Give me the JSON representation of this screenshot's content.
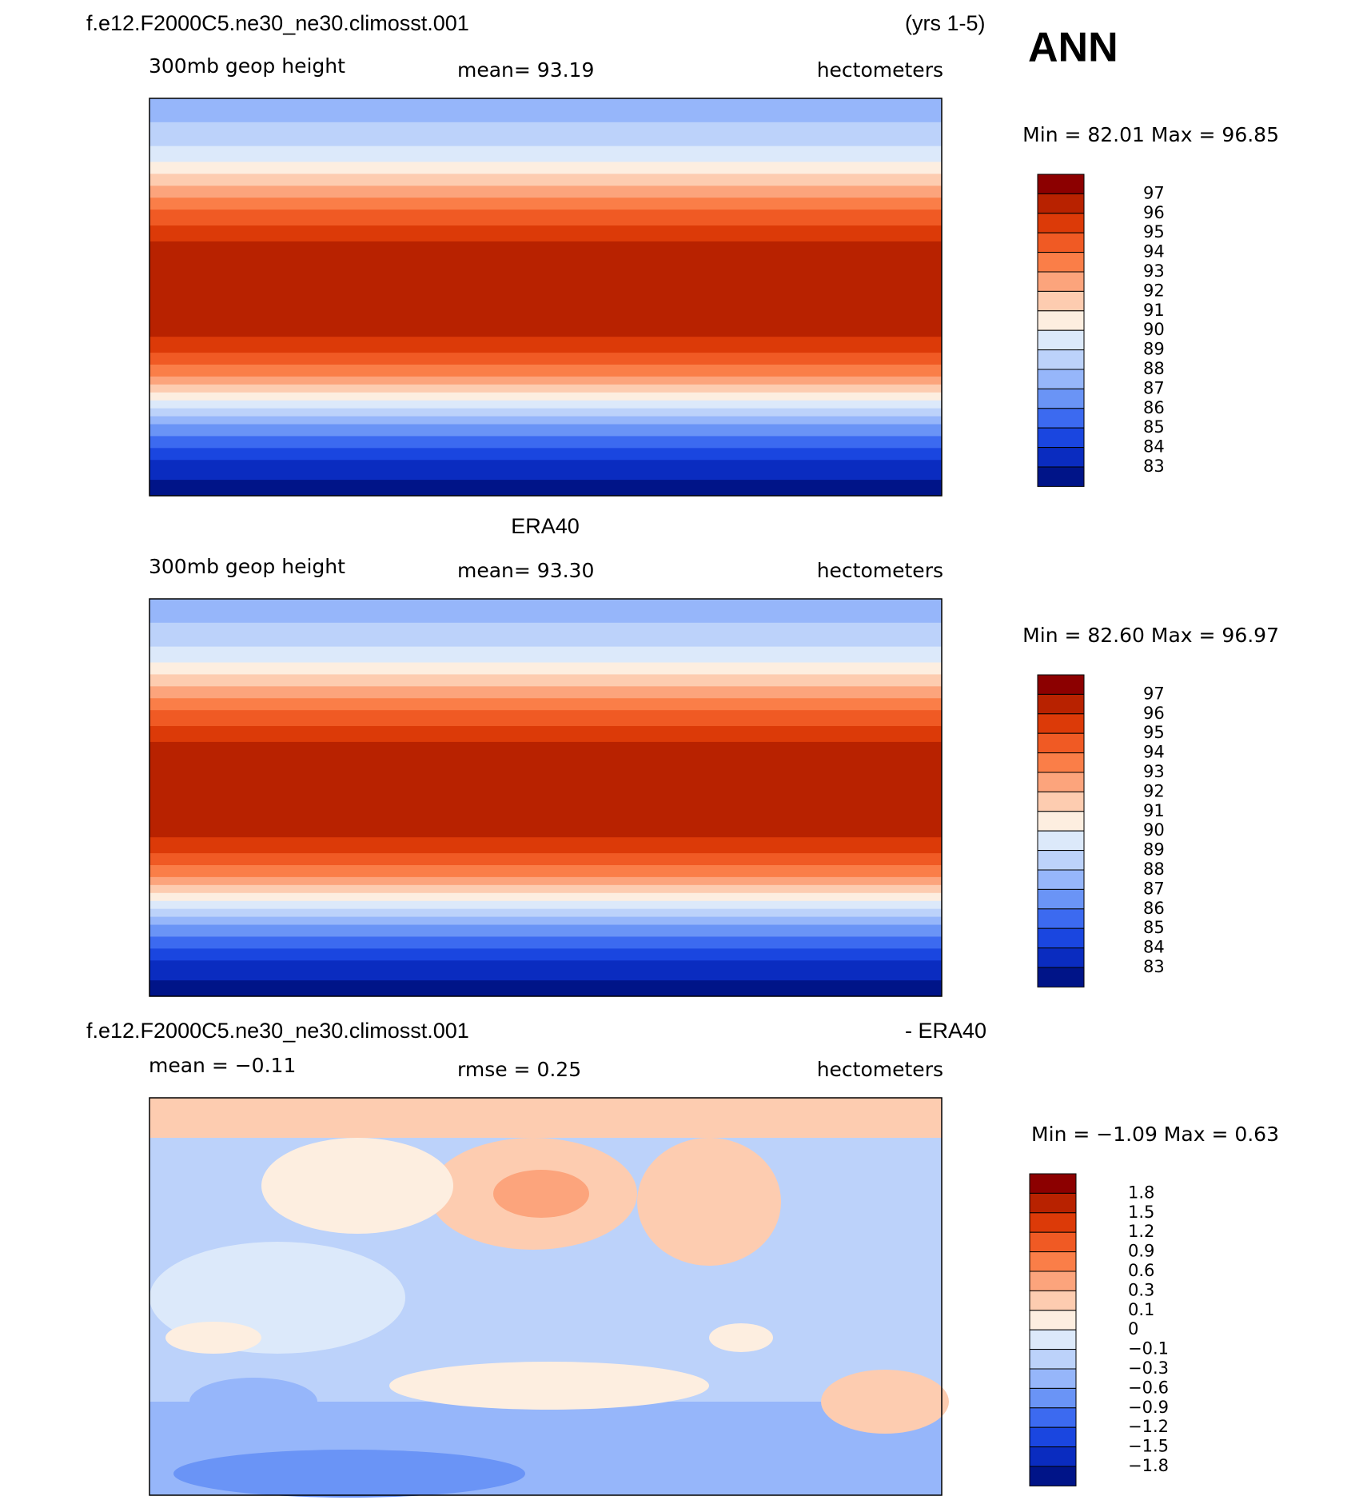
{
  "header": {
    "case": "f.e12.F2000C5.ne30_ne30.climosst.001",
    "years": "(yrs 1-5)",
    "season": "ANN"
  },
  "panels": [
    {
      "left": "300mb  geop  height",
      "center": "mean=   93.19",
      "right": "hectometers",
      "min_max": "Min =   82.01  Max =   96.85",
      "colorbar": {
        "labels": [
          "97",
          "96",
          "95",
          "94",
          "93",
          "92",
          "91",
          "90",
          "89",
          "88",
          "87",
          "86",
          "85",
          "84",
          "83"
        ],
        "colors": [
          "#8c0000",
          "#b82200",
          "#dc3a08",
          "#f05a24",
          "#fa7e48",
          "#fca47c",
          "#fdccb0",
          "#fdeee0",
          "#dce9fa",
          "#bcd2fa",
          "#96b6fa",
          "#6a94f6",
          "#3c6af0",
          "#1a46e0",
          "#0a2cc0",
          "#001488"
        ]
      }
    },
    {
      "title": "ERA40",
      "left": "300mb  geop  height",
      "center": "mean=   93.30",
      "right": "hectometers",
      "min_max": "Min =   82.60  Max =   96.97",
      "colorbar": {
        "labels": [
          "97",
          "96",
          "95",
          "94",
          "93",
          "92",
          "91",
          "90",
          "89",
          "88",
          "87",
          "86",
          "85",
          "84",
          "83"
        ],
        "colors": [
          "#8c0000",
          "#b82200",
          "#dc3a08",
          "#f05a24",
          "#fa7e48",
          "#fca47c",
          "#fdccb0",
          "#fdeee0",
          "#dce9fa",
          "#bcd2fa",
          "#96b6fa",
          "#6a94f6",
          "#3c6af0",
          "#1a46e0",
          "#0a2cc0",
          "#001488"
        ]
      }
    },
    {
      "title": "f.e12.F2000C5.ne30_ne30.climosst.001",
      "title_right": "- ERA40",
      "left": "mean =   −0.11",
      "center": "rmse =    0.25",
      "right": "hectometers",
      "min_max": "Min =   −1.09  Max =    0.63",
      "colorbar": {
        "labels": [
          "1.8",
          "1.5",
          "1.2",
          "0.9",
          "0.6",
          "0.3",
          "0.1",
          "0",
          "−0.1",
          "−0.3",
          "−0.6",
          "−0.9",
          "−1.2",
          "−1.5",
          "−1.8"
        ],
        "colors": [
          "#8c0000",
          "#b82200",
          "#dc3a08",
          "#f05a24",
          "#fa7e48",
          "#fca47c",
          "#fdccb0",
          "#fdeee0",
          "#dce9fa",
          "#bcd2fa",
          "#96b6fa",
          "#6a94f6",
          "#3c6af0",
          "#1a46e0",
          "#0a2cc0",
          "#001488"
        ]
      }
    }
  ]
}
